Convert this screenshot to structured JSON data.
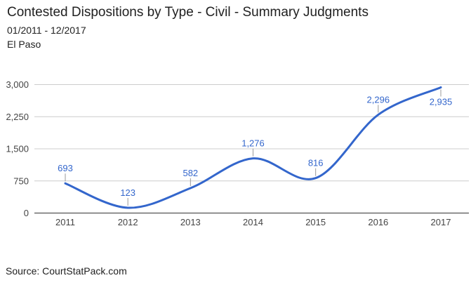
{
  "header": {
    "title": "Contested Dispositions by Type - Civil - Summary Judgments",
    "date_range": "01/2011 - 12/2017",
    "region": "El Paso"
  },
  "footer": {
    "source": "Source: CourtStatPack.com"
  },
  "chart_data": {
    "type": "line",
    "curve": "smooth",
    "title": "Contested Dispositions by Type - Civil - Summary Judgments",
    "subtitle": "01/2011 - 12/2017",
    "region": "El Paso",
    "categories": [
      "2011",
      "2012",
      "2013",
      "2014",
      "2015",
      "2016",
      "2017"
    ],
    "series": [
      {
        "name": "Summary Judgments",
        "values": [
          693,
          123,
          582,
          1276,
          816,
          2296,
          2935
        ],
        "point_labels": [
          "693",
          "123",
          "582",
          "1,276",
          "816",
          "2,296",
          "2,935"
        ]
      }
    ],
    "xlabel": "",
    "ylabel": "",
    "ylim": [
      0,
      3000
    ],
    "y_ticks": [
      {
        "value": 0,
        "label": "0"
      },
      {
        "value": 750,
        "label": "750"
      },
      {
        "value": 1500,
        "label": "1,500"
      },
      {
        "value": 2250,
        "label": "2,250"
      },
      {
        "value": 3000,
        "label": "3,000"
      }
    ],
    "grid": true,
    "legend": "none",
    "colors": {
      "series": "#3366cc",
      "annotation": "#3366cc",
      "annotation_stem": "#999999",
      "gridline": "#cccccc",
      "baseline": "#333333",
      "axis_text": "#444444"
    }
  }
}
